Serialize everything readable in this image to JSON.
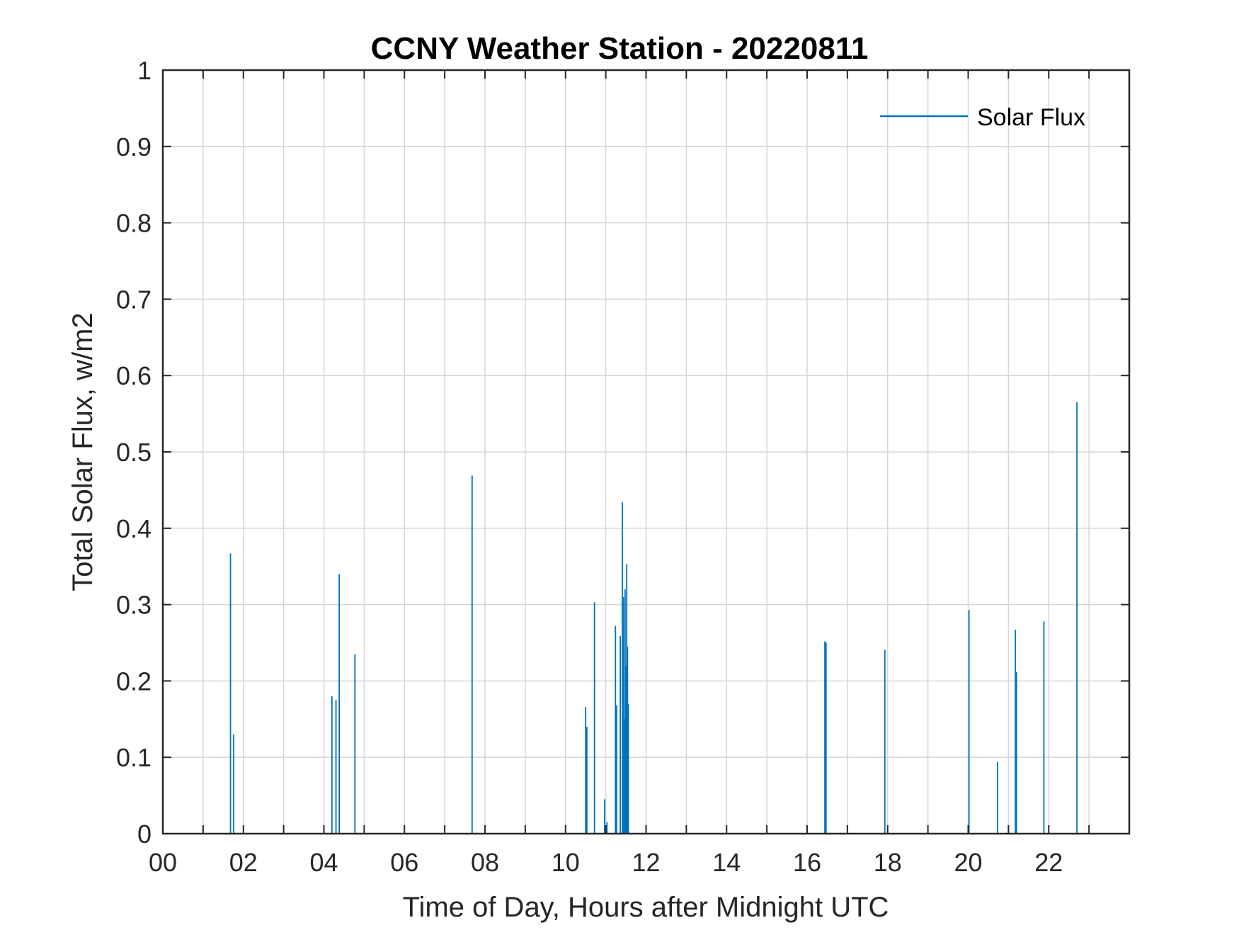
{
  "chart_data": {
    "type": "line",
    "title": "CCNY Weather Station - 20220811",
    "xlabel": "Time of Day, Hours after Midnight UTC",
    "ylabel": "Total Solar Flux, w/m2",
    "xlim": [
      0,
      24
    ],
    "ylim": [
      0,
      1
    ],
    "x_ticks": [
      0,
      2,
      4,
      6,
      8,
      10,
      12,
      14,
      16,
      18,
      20,
      22
    ],
    "x_tick_labels": [
      "00",
      "02",
      "04",
      "06",
      "08",
      "10",
      "12",
      "14",
      "16",
      "18",
      "20",
      "22"
    ],
    "x_minor_ticks": [
      1,
      3,
      5,
      7,
      9,
      11,
      13,
      15,
      17,
      19,
      21,
      23
    ],
    "y_ticks": [
      0,
      0.1,
      0.2,
      0.3,
      0.4,
      0.5,
      0.6,
      0.7,
      0.8,
      0.9,
      1
    ],
    "y_tick_labels": [
      "0",
      "0.1",
      "0.2",
      "0.3",
      "0.4",
      "0.5",
      "0.6",
      "0.7",
      "0.8",
      "0.9",
      "1"
    ],
    "grid": true,
    "legend_position": "top-right",
    "series": [
      {
        "name": "Solar Flux",
        "color": "#0072BD",
        "spikes": [
          {
            "x": 1.68,
            "y": 0.367
          },
          {
            "x": 1.76,
            "y": 0.13
          },
          {
            "x": 4.2,
            "y": 0.18
          },
          {
            "x": 4.3,
            "y": 0.175
          },
          {
            "x": 4.38,
            "y": 0.34
          },
          {
            "x": 4.77,
            "y": 0.235
          },
          {
            "x": 7.68,
            "y": 0.469
          },
          {
            "x": 10.5,
            "y": 0.166
          },
          {
            "x": 10.53,
            "y": 0.14
          },
          {
            "x": 10.72,
            "y": 0.303
          },
          {
            "x": 10.97,
            "y": 0.045
          },
          {
            "x": 11.03,
            "y": 0.015
          },
          {
            "x": 11.24,
            "y": 0.272
          },
          {
            "x": 11.27,
            "y": 0.168
          },
          {
            "x": 11.36,
            "y": 0.259
          },
          {
            "x": 11.41,
            "y": 0.434
          },
          {
            "x": 11.44,
            "y": 0.31
          },
          {
            "x": 11.46,
            "y": 0.15
          },
          {
            "x": 11.48,
            "y": 0.32
          },
          {
            "x": 11.5,
            "y": 0.22
          },
          {
            "x": 11.52,
            "y": 0.353
          },
          {
            "x": 11.54,
            "y": 0.245
          },
          {
            "x": 11.56,
            "y": 0.17
          },
          {
            "x": 16.44,
            "y": 0.252
          },
          {
            "x": 16.47,
            "y": 0.25
          },
          {
            "x": 17.93,
            "y": 0.241
          },
          {
            "x": 20.02,
            "y": 0.293
          },
          {
            "x": 20.73,
            "y": 0.094
          },
          {
            "x": 21.17,
            "y": 0.267
          },
          {
            "x": 21.2,
            "y": 0.212
          },
          {
            "x": 21.88,
            "y": 0.278
          },
          {
            "x": 22.7,
            "y": 0.565
          }
        ]
      }
    ]
  }
}
